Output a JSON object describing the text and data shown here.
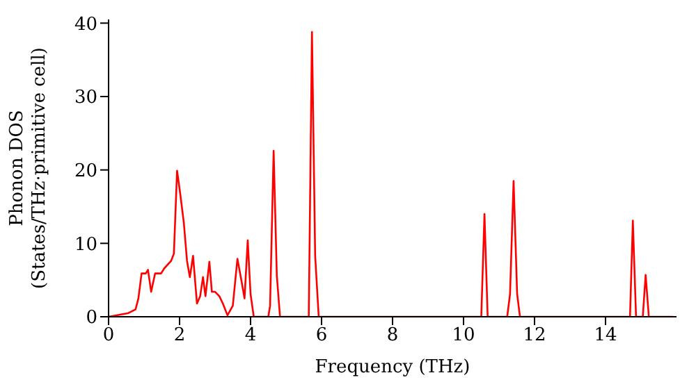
{
  "chart_data": {
    "type": "line",
    "xlabel": "Frequency (THz)",
    "ylabel": "Phonon DOS\n(States/THz·primitive cell)",
    "x": [
      0,
      0.56,
      0.76,
      0.84,
      0.93,
      1.05,
      1.11,
      1.2,
      1.31,
      1.48,
      1.57,
      1.76,
      1.84,
      1.93,
      2.02,
      2.12,
      2.21,
      2.29,
      2.38,
      2.49,
      2.58,
      2.66,
      2.73,
      2.84,
      2.91,
      3.0,
      3.12,
      3.22,
      3.35,
      3.5,
      3.63,
      3.74,
      3.83,
      3.92,
      4.0,
      4.09,
      4.5,
      4.55,
      4.65,
      4.74,
      4.83,
      5.64,
      5.73,
      5.82,
      5.92,
      10.5,
      10.59,
      10.68,
      11.23,
      11.31,
      11.41,
      11.51,
      11.59,
      14.69,
      14.77,
      14.86,
      15.05,
      15.13,
      15.22,
      15.9
    ],
    "series": [
      {
        "color": "#ff0000",
        "values": [
          0,
          0.5,
          1,
          2.5,
          5.9,
          5.9,
          6.4,
          3.4,
          5.9,
          5.9,
          6.6,
          7.6,
          8.6,
          19.9,
          16.7,
          12.8,
          7.6,
          5.4,
          8.3,
          1.8,
          2.8,
          5.4,
          2.8,
          7.5,
          3.4,
          3.4,
          2.8,
          1.8,
          0.2,
          1.5,
          7.9,
          5,
          2.5,
          10.4,
          3.1,
          0,
          0,
          1.5,
          22.6,
          5.6,
          0,
          0,
          38.8,
          8.3,
          0,
          0,
          14,
          0,
          0,
          3.1,
          18.5,
          3.1,
          0,
          0,
          13.1,
          0,
          0,
          5.7,
          0,
          0
        ]
      }
    ],
    "xlim": [
      0,
      16
    ],
    "xticks": [
      0,
      2,
      4,
      6,
      8,
      10,
      12,
      14
    ],
    "ylim": [
      0,
      40.5
    ],
    "yticks": [
      0,
      10,
      20,
      30,
      40
    ],
    "grid": false,
    "legend": false,
    "marker": "none",
    "line_style": "solid"
  }
}
